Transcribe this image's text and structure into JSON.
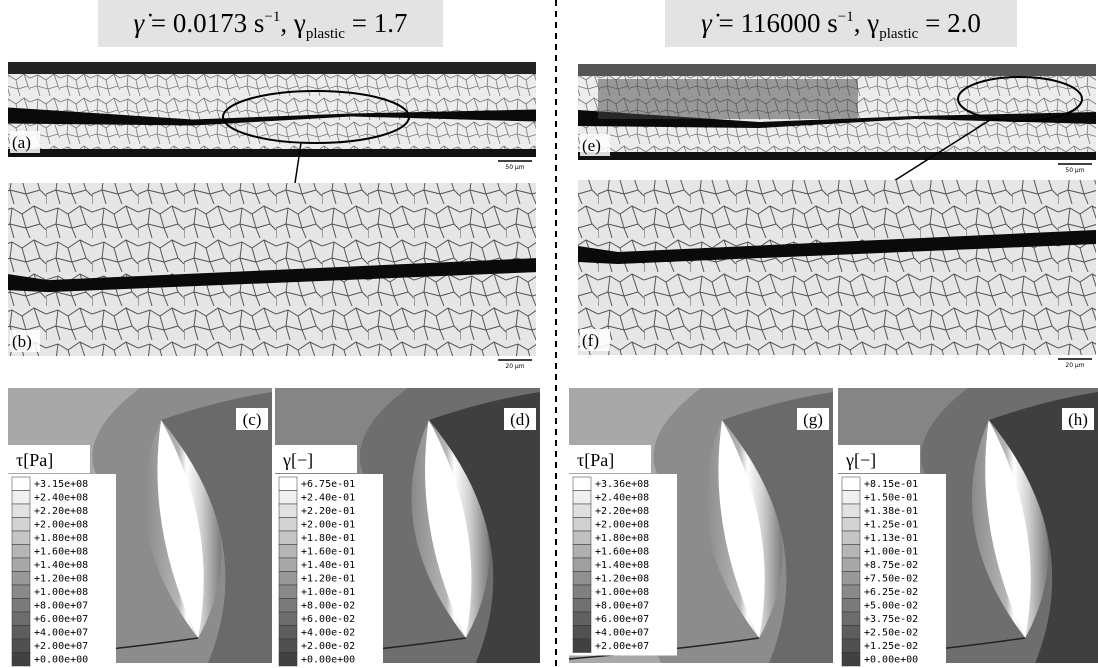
{
  "headers": [
    {
      "rate_symbol": "γ̇",
      "rate": " = 0.0173 s",
      "rate_exp": "−1",
      "strain_symbol": ",  γ",
      "strain_sub": "plastic",
      "strain": " = 1.7"
    },
    {
      "rate_symbol": "γ̇",
      "rate": " = 116000 s",
      "rate_exp": "−1",
      "strain_symbol": ",  γ",
      "strain_sub": "plastic",
      "strain": " = 2.0"
    }
  ],
  "micrographs": [
    {
      "label": "(a)",
      "scale": "50 µm"
    },
    {
      "label": "(b)",
      "scale": "20 µm"
    },
    {
      "label": "(e)",
      "scale": "50 µm"
    },
    {
      "label": "(f)",
      "scale": "20 µm"
    }
  ],
  "contours": [
    {
      "label": "(c)",
      "legend_title": "τ[Pa]",
      "legend": [
        "+3.15e+08",
        "+2.40e+08",
        "+2.20e+08",
        "+2.00e+08",
        "+1.80e+08",
        "+1.60e+08",
        "+1.40e+08",
        "+1.20e+08",
        "+1.00e+08",
        "+8.00e+07",
        "+6.00e+07",
        "+4.00e+07",
        "+2.00e+07",
        "+0.00e+00"
      ]
    },
    {
      "label": "(d)",
      "legend_title": "γ[−]",
      "legend": [
        "+6.75e-01",
        "+2.40e-01",
        "+2.20e-01",
        "+2.00e-01",
        "+1.80e-01",
        "+1.60e-01",
        "+1.40e-01",
        "+1.20e-01",
        "+1.00e-01",
        "+8.00e-02",
        "+6.00e-02",
        "+4.00e-02",
        "+2.00e-02",
        "+0.00e+00"
      ]
    },
    {
      "label": "(g)",
      "legend_title": "τ[Pa]",
      "legend": [
        "+3.36e+08",
        "+2.40e+08",
        "+2.20e+08",
        "+2.00e+08",
        "+1.80e+08",
        "+1.60e+08",
        "+1.40e+08",
        "+1.20e+08",
        "+1.00e+08",
        "+8.00e+07",
        "+6.00e+07",
        "+4.00e+07",
        "+2.00e+07"
      ]
    },
    {
      "label": "(h)",
      "legend_title": "γ[−]",
      "legend": [
        "+8.15e-01",
        "+1.50e-01",
        "+1.38e-01",
        "+1.25e-01",
        "+1.13e-01",
        "+1.00e-01",
        "+8.75e-02",
        "+7.50e-02",
        "+6.25e-02",
        "+5.00e-02",
        "+3.75e-02",
        "+2.50e-02",
        "+1.25e-02",
        "+0.00e+00"
      ]
    }
  ]
}
